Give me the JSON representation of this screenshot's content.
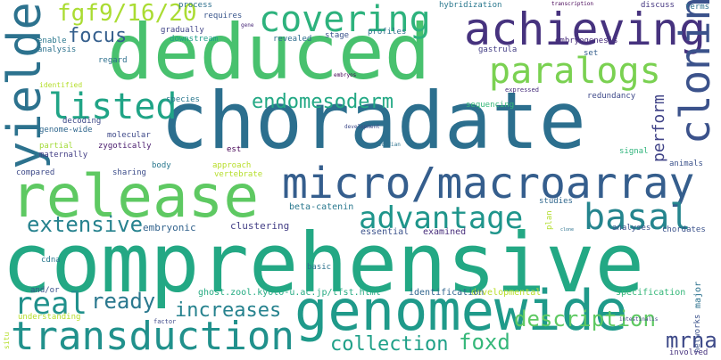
{
  "words": [
    {
      "id": "comprehensive",
      "text": "comprehensive",
      "color": "#23a884"
    },
    {
      "id": "choradate",
      "text": "choradate",
      "color": "#2c6f8e"
    },
    {
      "id": "deduced",
      "text": "deduced",
      "color": "#48c16e"
    },
    {
      "id": "release",
      "text": "release",
      "color": "#5ec962"
    },
    {
      "id": "genomewide",
      "text": "genomewide",
      "color": "#1f9a8a"
    },
    {
      "id": "micro-macroarray",
      "text": "micro/macroarray",
      "color": "#355e8d"
    },
    {
      "id": "transduction",
      "text": "transduction",
      "color": "#21918c"
    },
    {
      "id": "achieving",
      "text": "achieving",
      "color": "#46327e"
    },
    {
      "id": "covering",
      "text": "covering",
      "color": "#2db27d"
    },
    {
      "id": "paralogs",
      "text": "paralogs",
      "color": "#7ad151"
    },
    {
      "id": "yielded",
      "text": "yielded",
      "color": "#2c728e"
    },
    {
      "id": "advantage",
      "text": "advantage",
      "color": "#1f958b"
    },
    {
      "id": "basal",
      "text": "basal",
      "color": "#25858e"
    },
    {
      "id": "cloning",
      "text": "cloning",
      "color": "#3b528b"
    },
    {
      "id": "listed",
      "text": "listed",
      "color": "#20a486"
    },
    {
      "id": "fgf9-16-20",
      "text": "fgf9/16/20",
      "color": "#aadc32"
    },
    {
      "id": "endomesoderm",
      "text": "endomesoderm",
      "color": "#22a884"
    },
    {
      "id": "real",
      "text": "real",
      "color": "#21918c"
    },
    {
      "id": "ready",
      "text": "ready",
      "color": "#2a788e"
    },
    {
      "id": "increases",
      "text": "increases",
      "color": "#26828e"
    },
    {
      "id": "extensive",
      "text": "extensive",
      "color": "#26828e"
    },
    {
      "id": "description",
      "text": "description",
      "color": "#5ec962"
    },
    {
      "id": "foxd",
      "text": "foxd",
      "color": "#35b779"
    },
    {
      "id": "collection",
      "text": "collection",
      "color": "#1fa088"
    },
    {
      "id": "mrna",
      "text": "mrna",
      "color": "#3e4a89"
    },
    {
      "id": "focus",
      "text": "focus",
      "color": "#355f8d"
    },
    {
      "id": "perform",
      "text": "perform",
      "color": "#404387"
    },
    {
      "id": "developmental",
      "text": "developmental",
      "color": "#b8de29"
    },
    {
      "id": "clustering",
      "text": "clustering",
      "color": "#433e85"
    },
    {
      "id": "embryonic",
      "text": "embryonic",
      "color": "#33638d"
    },
    {
      "id": "beta-catenin",
      "text": "beta-catenin",
      "color": "#2a788e"
    },
    {
      "id": "essential",
      "text": "essential",
      "color": "#3b528b"
    },
    {
      "id": "examined",
      "text": "examined",
      "color": "#472d7b"
    },
    {
      "id": "ghost",
      "text": "ghost.zool.kyoto-u.ac.jp/tfst.html",
      "color": "#25ab82"
    },
    {
      "id": "identification",
      "text": "identification",
      "color": "#31668e"
    },
    {
      "id": "specification",
      "text": "specification",
      "color": "#35b779"
    },
    {
      "id": "major",
      "text": "major",
      "color": "#2c728e"
    },
    {
      "id": "networks",
      "text": "networks",
      "color": "#3b528b"
    },
    {
      "id": "involved",
      "text": "involved",
      "color": "#46327e"
    },
    {
      "id": "hybridization",
      "text": "hybridization",
      "color": "#2a788e"
    },
    {
      "id": "transcription",
      "text": "transcription",
      "color": "#440154"
    },
    {
      "id": "discuss",
      "text": "discuss",
      "color": "#453781"
    },
    {
      "id": "terms",
      "text": "terms",
      "color": "#2d708e"
    },
    {
      "id": "requires",
      "text": "requires",
      "color": "#39568c"
    },
    {
      "id": "gene",
      "text": "gene",
      "color": "#482878"
    },
    {
      "id": "process",
      "text": "process",
      "color": "#2d708e"
    },
    {
      "id": "gradually",
      "text": "gradually",
      "color": "#414487"
    },
    {
      "id": "downstream",
      "text": "downstream",
      "color": "#1f9e89"
    },
    {
      "id": "revealed",
      "text": "revealed",
      "color": "#2e6e8e"
    },
    {
      "id": "stage",
      "text": "stage",
      "color": "#3b528b"
    },
    {
      "id": "profiles",
      "text": "profiles",
      "color": "#2c728e"
    },
    {
      "id": "gastrula",
      "text": "gastrula",
      "color": "#433e85"
    },
    {
      "id": "set",
      "text": "set",
      "color": "#355f8d"
    },
    {
      "id": "embryogenesis",
      "text": "embryogenesis",
      "color": "#472c7a"
    },
    {
      "id": "enable",
      "text": "enable",
      "color": "#2a788e"
    },
    {
      "id": "analysis",
      "text": "analysis",
      "color": "#2c728e"
    },
    {
      "id": "regard",
      "text": "regard",
      "color": "#2d708e"
    },
    {
      "id": "identified",
      "text": "identified",
      "color": "#b5de2b"
    },
    {
      "id": "embryos",
      "text": "embryos",
      "color": "#440154"
    },
    {
      "id": "expressed",
      "text": "expressed",
      "color": "#472d7b"
    },
    {
      "id": "redundancy",
      "text": "redundancy",
      "color": "#3e4989"
    },
    {
      "id": "sequencing",
      "text": "sequencing",
      "color": "#35b779"
    },
    {
      "id": "species",
      "text": "species",
      "color": "#2a788e"
    },
    {
      "id": "decoding",
      "text": "decoding",
      "color": "#3e4a89"
    },
    {
      "id": "genome-wide",
      "text": "genome-wide",
      "color": "#31688e"
    },
    {
      "id": "molecular",
      "text": "molecular",
      "color": "#3e4989"
    },
    {
      "id": "est",
      "text": "est",
      "color": "#440154"
    },
    {
      "id": "partial",
      "text": "partial",
      "color": "#a2da37"
    },
    {
      "id": "zygotically",
      "text": "zygotically",
      "color": "#481a6c"
    },
    {
      "id": "maternally",
      "text": "maternally",
      "color": "#433e85"
    },
    {
      "id": "development",
      "text": "development",
      "color": "#3e4a89"
    },
    {
      "id": "ascidian",
      "text": "ascidian",
      "color": "#2c728e"
    },
    {
      "id": "signal",
      "text": "signal",
      "color": "#2fb47c"
    },
    {
      "id": "animals",
      "text": "animals",
      "color": "#3b528b"
    },
    {
      "id": "compared",
      "text": "compared",
      "color": "#3e4a89"
    },
    {
      "id": "sharing",
      "text": "sharing",
      "color": "#3d4d8a"
    },
    {
      "id": "body",
      "text": "body",
      "color": "#2a788e"
    },
    {
      "id": "approach",
      "text": "approach",
      "color": "#b8de29"
    },
    {
      "id": "vertebrate",
      "text": "vertebrate",
      "color": "#b5de2b"
    },
    {
      "id": "studies",
      "text": "studies",
      "color": "#31688e"
    },
    {
      "id": "plan",
      "text": "plan",
      "color": "#b2dd2d"
    },
    {
      "id": "analyses",
      "text": "analyses",
      "color": "#3b528b"
    },
    {
      "id": "chordates",
      "text": "chordates",
      "color": "#3b528b"
    },
    {
      "id": "cdna",
      "text": "cdna",
      "color": "#2a788e"
    },
    {
      "id": "basic",
      "text": "basic",
      "color": "#2c728e"
    },
    {
      "id": "and-or",
      "text": "and/or",
      "color": "#3b528b"
    },
    {
      "id": "understanding",
      "text": "understanding",
      "color": "#b5de2b"
    },
    {
      "id": "factor",
      "text": "factor",
      "color": "#3e4989"
    },
    {
      "id": "intestinalis",
      "text": "intestinalis",
      "color": "#404387"
    },
    {
      "id": "clone",
      "text": "clone",
      "color": "#2c728e"
    },
    {
      "id": "situ",
      "text": "situ",
      "color": "#b5de2b"
    }
  ]
}
